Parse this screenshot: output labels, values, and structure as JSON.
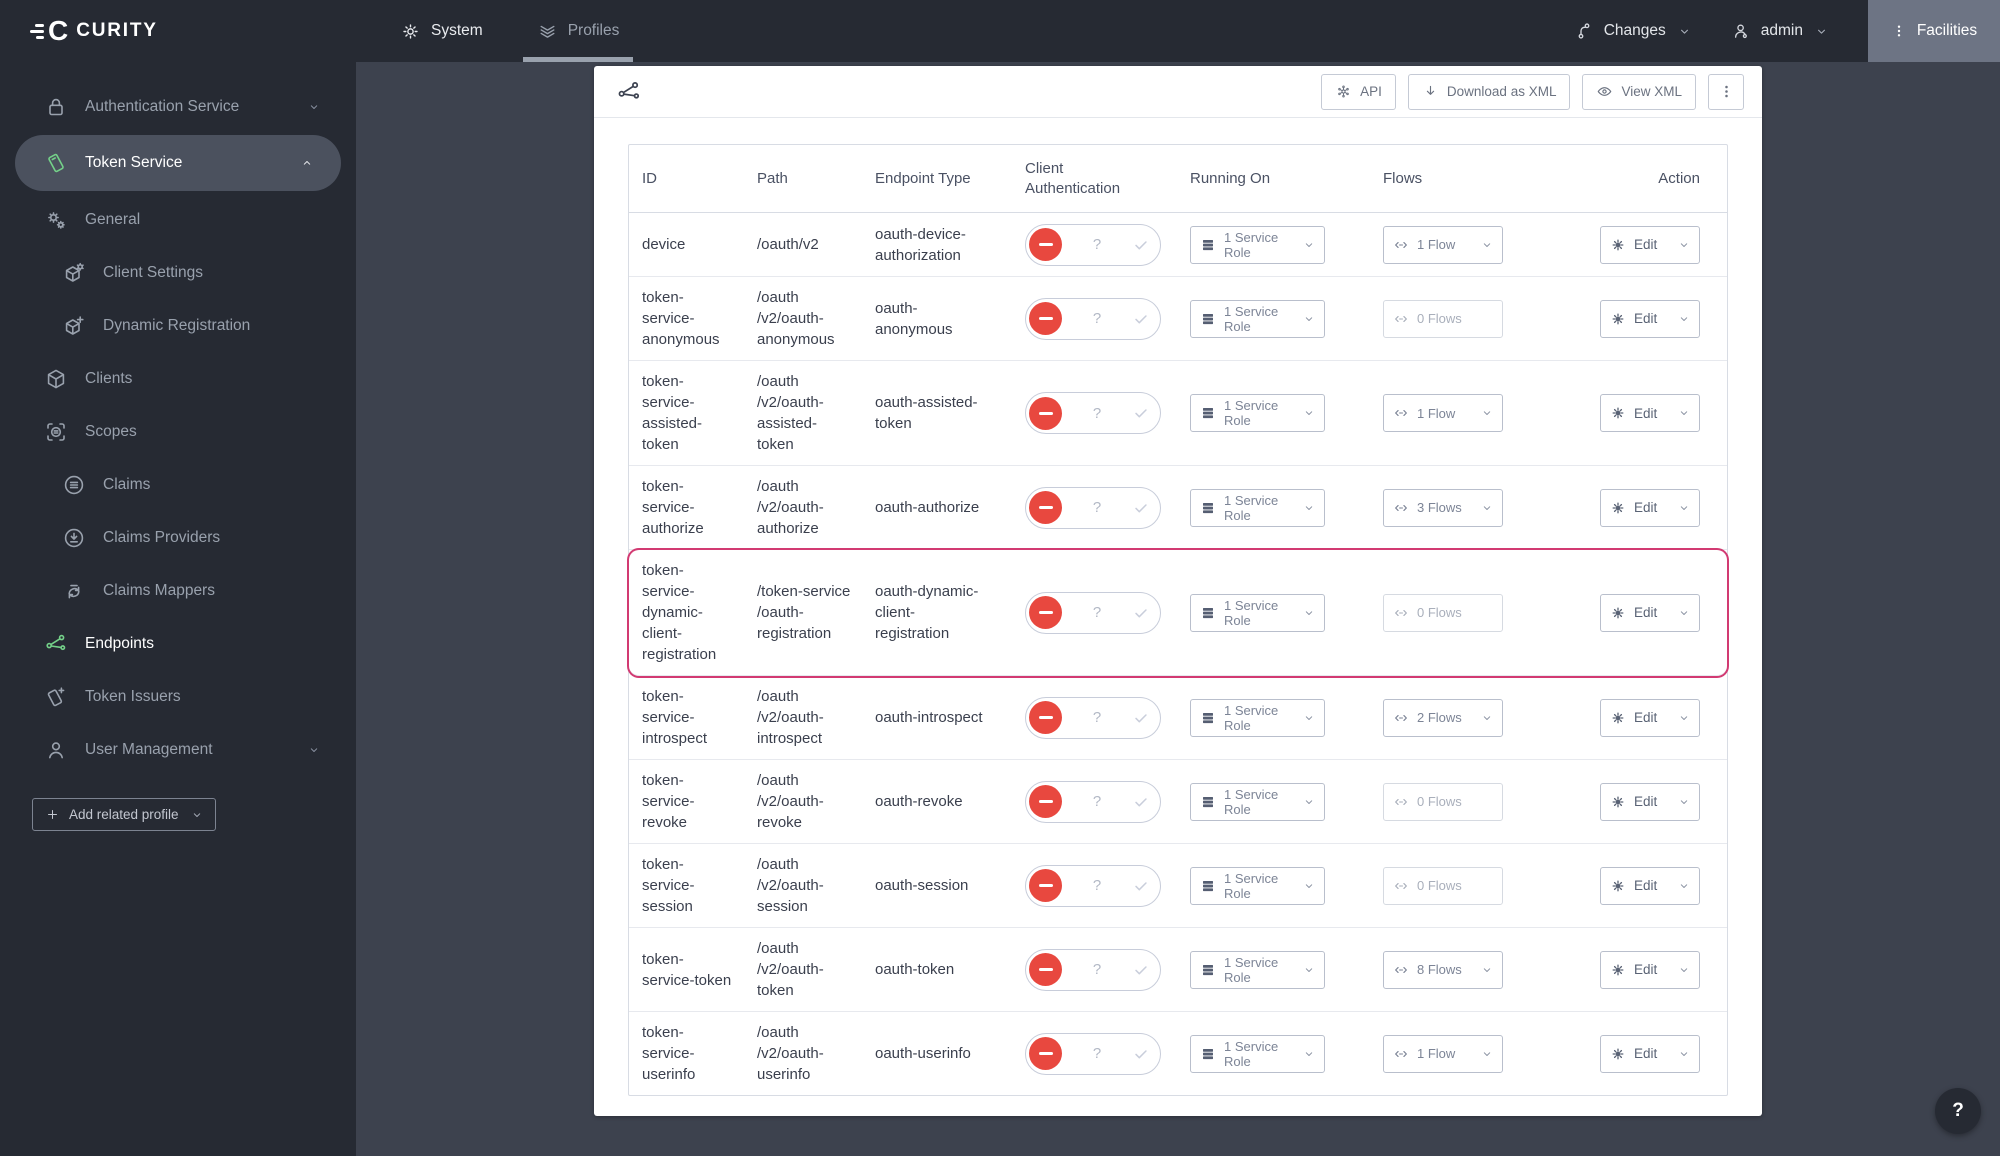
{
  "colors": {
    "accent_green": "#74d189",
    "danger_red": "#e8483f",
    "highlight_pink": "#d23a72",
    "topbar_bg": "#262a33",
    "content_bg": "#3d424e"
  },
  "topbar": {
    "brand_mark": "C",
    "brand": "CURITY",
    "nav": [
      {
        "id": "system",
        "label": "System",
        "icon": "gear",
        "active": false
      },
      {
        "id": "profiles",
        "label": "Profiles",
        "icon": "layers",
        "active": true
      }
    ],
    "changes_label": "Changes",
    "admin_label": "admin",
    "facilities_label": "Facilities"
  },
  "sidebar": {
    "items": [
      {
        "label": "Authentication Service",
        "icon": "lock",
        "chevron": "down",
        "indent": 0
      },
      {
        "label": "Token Service",
        "icon": "ticket",
        "chevron": "up",
        "indent": 0,
        "selected": true
      },
      {
        "label": "General",
        "icon": "gears",
        "indent": 0
      },
      {
        "label": "Client Settings",
        "icon": "box-gear",
        "indent": 1
      },
      {
        "label": "Dynamic Registration",
        "icon": "box-plus",
        "indent": 1
      },
      {
        "label": "Clients",
        "icon": "box",
        "indent": 0
      },
      {
        "label": "Scopes",
        "icon": "scopes",
        "indent": 0
      },
      {
        "label": "Claims",
        "icon": "claims",
        "indent": 1
      },
      {
        "label": "Claims Providers",
        "icon": "claims-provider",
        "indent": 1
      },
      {
        "label": "Claims Mappers",
        "icon": "claims-mapper",
        "indent": 1
      },
      {
        "label": "Endpoints",
        "icon": "endpoints",
        "indent": 0,
        "active": true
      },
      {
        "label": "Token Issuers",
        "icon": "ticket-plus",
        "indent": 0
      },
      {
        "label": "User Management",
        "icon": "user",
        "chevron": "down",
        "indent": 0
      }
    ],
    "add_button_label": "Add related profile"
  },
  "toolbar": {
    "api_label": "API",
    "download_label": "Download as XML",
    "view_xml_label": "View XML"
  },
  "table": {
    "columns": [
      "ID",
      "Path",
      "Endpoint Type",
      "Client Authentication",
      "Running On",
      "Flows",
      "Action"
    ],
    "edit_label": "Edit",
    "toggle_optional_glyph": "?",
    "rows": [
      {
        "id": "device",
        "path": "/oauth/v2",
        "type": "oauth-device-authorization",
        "client_auth": "disabled",
        "running_on": "1 Service Role",
        "flows": "1 Flow",
        "flows_enabled": true
      },
      {
        "id": "token-service-anonymous",
        "path": "/oauth\n/v2/oauth-anonymous",
        "type": "oauth-anonymous",
        "client_auth": "disabled",
        "running_on": "1 Service Role",
        "flows": "0 Flows",
        "flows_enabled": false
      },
      {
        "id": "token-service-assisted-token",
        "path": "/oauth\n/v2/oauth-assisted-token",
        "type": "oauth-assisted-token",
        "client_auth": "disabled",
        "running_on": "1 Service Role",
        "flows": "1 Flow",
        "flows_enabled": true
      },
      {
        "id": "token-service-authorize",
        "path": "/oauth\n/v2/oauth-authorize",
        "type": "oauth-authorize",
        "client_auth": "disabled",
        "running_on": "1 Service Role",
        "flows": "3 Flows",
        "flows_enabled": true
      },
      {
        "id": "token-service-dynamic-client-registration",
        "path": "/token-service\n/oauth-registration",
        "type": "oauth-dynamic-client-registration",
        "client_auth": "disabled",
        "running_on": "1 Service Role",
        "flows": "0 Flows",
        "flows_enabled": false,
        "highlighted": true
      },
      {
        "id": "token-service-introspect",
        "path": "/oauth\n/v2/oauth-introspect",
        "type": "oauth-introspect",
        "client_auth": "disabled",
        "running_on": "1 Service Role",
        "flows": "2 Flows",
        "flows_enabled": true
      },
      {
        "id": "token-service-revoke",
        "path": "/oauth\n/v2/oauth-revoke",
        "type": "oauth-revoke",
        "client_auth": "disabled",
        "running_on": "1 Service Role",
        "flows": "0 Flows",
        "flows_enabled": false
      },
      {
        "id": "token-service-session",
        "path": "/oauth\n/v2/oauth-session",
        "type": "oauth-session",
        "client_auth": "disabled",
        "running_on": "1 Service Role",
        "flows": "0 Flows",
        "flows_enabled": false
      },
      {
        "id": "token-service-token",
        "path": "/oauth\n/v2/oauth-token",
        "type": "oauth-token",
        "client_auth": "disabled",
        "running_on": "1 Service Role",
        "flows": "8 Flows",
        "flows_enabled": true
      },
      {
        "id": "token-service-userinfo",
        "path": "/oauth\n/v2/oauth-userinfo",
        "type": "oauth-userinfo",
        "client_auth": "disabled",
        "running_on": "1 Service Role",
        "flows": "1 Flow",
        "flows_enabled": true
      }
    ]
  },
  "help_label": "?"
}
